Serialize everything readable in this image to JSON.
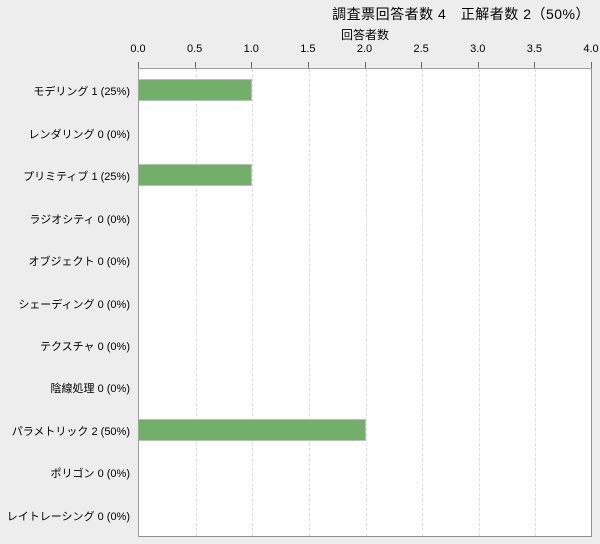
{
  "page": {
    "background": "#ededed"
  },
  "chart_data": {
    "type": "bar",
    "orientation": "horizontal",
    "title": "調査票回答者数 4　正解者数 2（50%）",
    "xlabel": "回答者数",
    "xlabel_position": "top",
    "categories": [
      "モデリング 1 (25%)",
      "レンダリング 0 (0%)",
      "プリミティブ 1 (25%)",
      "ラジオシティ 0 (0%)",
      "オブジェクト 0 (0%)",
      "シェーディング 0 (0%)",
      "テクスチャ 0 (0%)",
      "陰線処理 0 (0%)",
      "パラメトリック 2 (50%)",
      "ポリゴン 0 (0%)",
      "レイトレーシング 0 (0%)"
    ],
    "values": [
      1,
      0,
      1,
      0,
      0,
      0,
      0,
      0,
      2,
      0,
      0
    ],
    "xlim": [
      0.0,
      4.0
    ],
    "xticks": [
      0.0,
      0.5,
      1.0,
      1.5,
      2.0,
      2.5,
      3.0,
      3.5,
      4.0
    ],
    "grid": true,
    "legend": false,
    "colors": {
      "bar_fill": "#72b06a",
      "bar_border": "#bdbdbd",
      "plot_bg": "#ffffff",
      "plot_border": "#9e9e9e",
      "grid_line": "#dcdcdc",
      "page_bg": "#ededed",
      "tick": "#666666",
      "text": "#000000"
    }
  }
}
